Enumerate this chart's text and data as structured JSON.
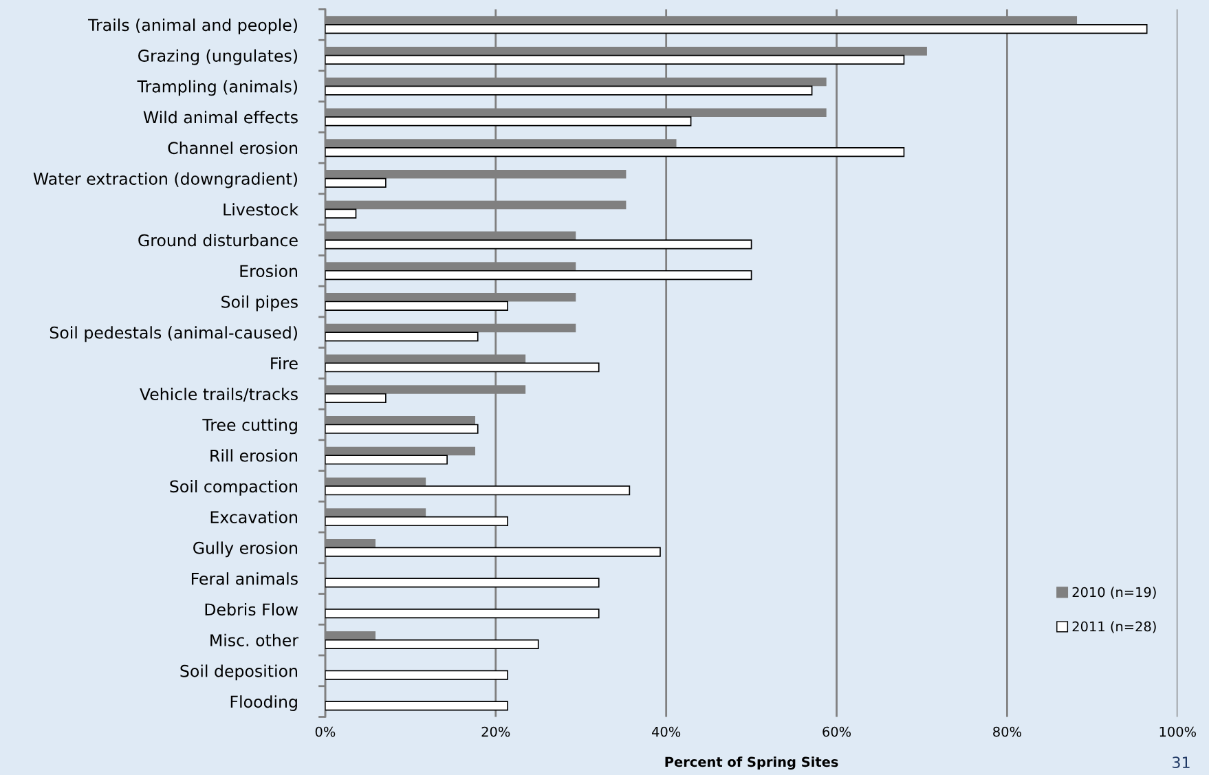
{
  "chart_data": {
    "type": "bar",
    "orientation": "horizontal",
    "xlabel": "Percent of Spring Sites",
    "categories": [
      "Trails (animal and people)",
      "Grazing (ungulates)",
      "Trampling (animals)",
      "Wild animal effects",
      "Channel erosion",
      "Water extraction (downgradient)",
      "Livestock",
      "Ground disturbance",
      "Erosion",
      "Soil pipes",
      "Soil pedestals (animal-caused)",
      "Fire",
      "Vehicle trails/tracks",
      "Tree cutting",
      "Rill erosion",
      "Soil compaction",
      "Excavation",
      "Gully erosion",
      "Feral animals",
      "Debris Flow",
      "Misc. other",
      "Soil deposition",
      "Flooding"
    ],
    "series": [
      {
        "name": "2010 (n=19)",
        "color": "#808080",
        "values": [
          88.2,
          70.6,
          58.8,
          58.8,
          41.2,
          35.3,
          35.3,
          29.4,
          29.4,
          29.4,
          29.4,
          23.5,
          23.5,
          17.6,
          17.6,
          11.8,
          11.8,
          5.9,
          0,
          0,
          5.9,
          0,
          0
        ]
      },
      {
        "name": "2011 (n=28)",
        "color": "#ffffff",
        "values": [
          96.4,
          67.9,
          57.1,
          42.9,
          67.9,
          7.1,
          3.6,
          50,
          50,
          21.4,
          17.9,
          32.1,
          7.1,
          17.9,
          14.3,
          35.7,
          21.4,
          39.3,
          32.1,
          32.1,
          25,
          21.4,
          21.4
        ]
      }
    ],
    "xlim": [
      0,
      100
    ],
    "xticks": [
      {
        "value": 0,
        "label": "0%"
      },
      {
        "value": 20,
        "label": "20%"
      },
      {
        "value": 40,
        "label": "40%"
      },
      {
        "value": 60,
        "label": "60%"
      },
      {
        "value": 80,
        "label": "80%"
      },
      {
        "value": 100,
        "label": "100%"
      }
    ],
    "grid": "x",
    "legend": "bottom right",
    "annotations": [
      "31"
    ]
  }
}
